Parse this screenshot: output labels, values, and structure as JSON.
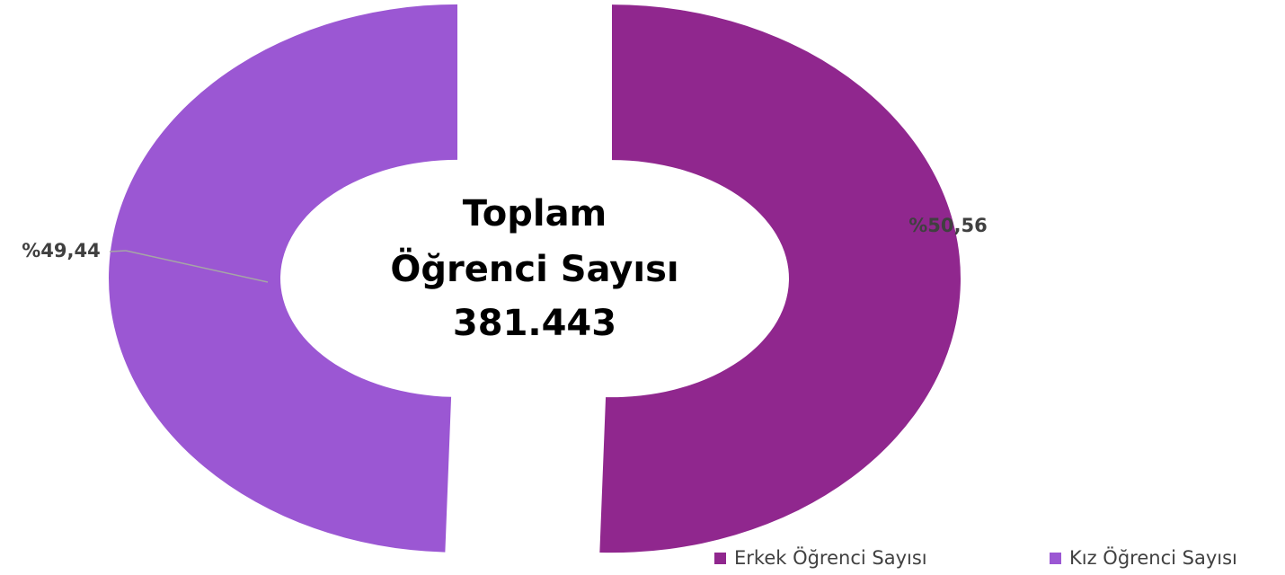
{
  "chart_data": {
    "type": "donut",
    "center_text": [
      "Toplam",
      "Öğrenci Sayısı",
      "381.443"
    ],
    "categories": [
      "Erkek Öğrenci Sayısı",
      "Kız Öğrenci Sayısı"
    ],
    "values": [
      50.56,
      49.44
    ],
    "value_labels": [
      "%50,56",
      "%49,44"
    ],
    "colors": [
      "#90278e",
      "#9b57d3"
    ],
    "legend": "bottom-right"
  }
}
